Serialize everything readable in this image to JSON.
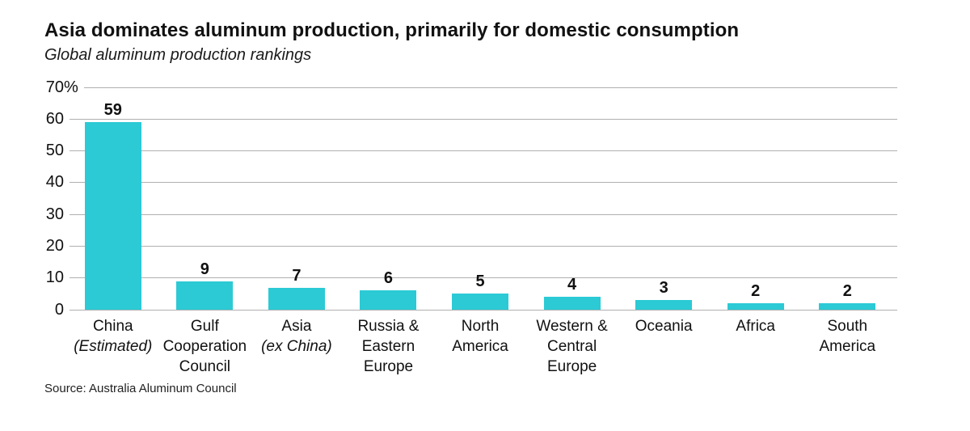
{
  "header": {
    "title": "Asia dominates aluminum production, primarily for domestic consumption",
    "subtitle": "Global aluminum production rankings"
  },
  "source_note": "Source: Australia Aluminum Council",
  "colors": {
    "bar": "#2bcad5",
    "gridline": "#b0b0b0",
    "text": "#111111"
  },
  "chart_data": {
    "type": "bar",
    "title": "Asia dominates aluminum production, primarily for domestic consumption",
    "subtitle": "Global aluminum production rankings",
    "categories": [
      "China (Estimated)",
      "Gulf Cooperation Council",
      "Asia (ex China)",
      "Russia & Eastern Europe",
      "North America",
      "Western & Central Europe",
      "Oceania",
      "Africa",
      "South America"
    ],
    "values": [
      59,
      9,
      7,
      6,
      5,
      4,
      3,
      2,
      2
    ],
    "bar_value_labels": [
      "59",
      "9",
      "7",
      "6",
      "5",
      "4",
      "3",
      "2",
      "2"
    ],
    "category_lines": [
      [
        {
          "text": "China",
          "italic": false
        },
        {
          "text": "(Estimated)",
          "italic": true
        }
      ],
      [
        {
          "text": "Gulf",
          "italic": false
        },
        {
          "text": "Cooperation",
          "italic": false
        },
        {
          "text": "Council",
          "italic": false
        }
      ],
      [
        {
          "text": "Asia",
          "italic": false
        },
        {
          "text": "(ex China)",
          "italic": true
        }
      ],
      [
        {
          "text": "Russia &",
          "italic": false
        },
        {
          "text": "Eastern",
          "italic": false
        },
        {
          "text": "Europe",
          "italic": false
        }
      ],
      [
        {
          "text": "North",
          "italic": false
        },
        {
          "text": "America",
          "italic": false
        }
      ],
      [
        {
          "text": "Western &",
          "italic": false
        },
        {
          "text": "Central",
          "italic": false
        },
        {
          "text": "Europe",
          "italic": false
        }
      ],
      [
        {
          "text": "Oceania",
          "italic": false
        }
      ],
      [
        {
          "text": "Africa",
          "italic": false
        }
      ],
      [
        {
          "text": "South",
          "italic": false
        },
        {
          "text": "America",
          "italic": false
        }
      ]
    ],
    "xlabel": "",
    "ylabel": "",
    "ylim": [
      0,
      70
    ],
    "yticks": [
      70,
      60,
      50,
      40,
      30,
      20,
      10,
      0
    ],
    "ytick_unit": "%",
    "unit_on_top_tick_only": true,
    "grid": "horizontal",
    "legend": "none",
    "source": "Source: Australia Aluminum Council"
  }
}
